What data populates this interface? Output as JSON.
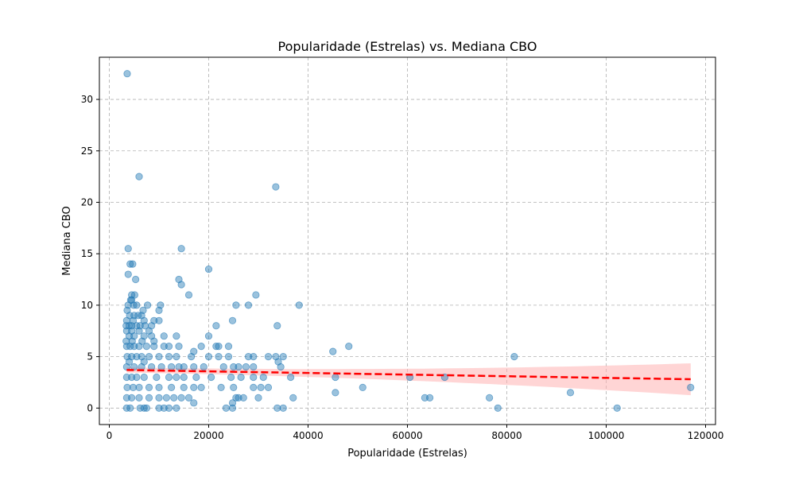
{
  "chart_data": {
    "type": "scatter",
    "title": "Popularidade (Estrelas) vs. Mediana CBO",
    "xlabel": "Popularidade (Estrelas)",
    "ylabel": "Mediana CBO",
    "xlim": [
      -2000,
      122000
    ],
    "ylim": [
      -1.6,
      34.1
    ],
    "xticks": [
      0,
      20000,
      40000,
      60000,
      80000,
      100000,
      120000
    ],
    "yticks": [
      0,
      5,
      10,
      15,
      20,
      25,
      30
    ],
    "grid": true,
    "colors": {
      "points": "#1f77b4",
      "regression_line": "#ff0000",
      "confidence_band": "#ffb3b3"
    },
    "regression": {
      "x": [
        3500,
        117000
      ],
      "y": [
        3.7,
        2.8
      ],
      "band_half_width": [
        0.25,
        1.55
      ]
    },
    "points": [
      [
        3600,
        32.5
      ],
      [
        6000,
        22.5
      ],
      [
        33500,
        21.5
      ],
      [
        3800,
        15.5
      ],
      [
        14500,
        15.5
      ],
      [
        4200,
        14
      ],
      [
        4700,
        14
      ],
      [
        3800,
        13
      ],
      [
        20000,
        13.5
      ],
      [
        5300,
        12.5
      ],
      [
        14000,
        12.5
      ],
      [
        14500,
        12
      ],
      [
        16000,
        11
      ],
      [
        4500,
        11
      ],
      [
        5100,
        11
      ],
      [
        29500,
        11
      ],
      [
        4500,
        10.5
      ],
      [
        4300,
        10.5
      ],
      [
        3800,
        10
      ],
      [
        4900,
        10
      ],
      [
        5500,
        10
      ],
      [
        7700,
        10
      ],
      [
        10300,
        10
      ],
      [
        25500,
        10
      ],
      [
        28000,
        10
      ],
      [
        38200,
        10
      ],
      [
        3600,
        9.5
      ],
      [
        6800,
        9.5
      ],
      [
        10000,
        9.5
      ],
      [
        4100,
        9
      ],
      [
        5000,
        9
      ],
      [
        5800,
        9
      ],
      [
        6500,
        9
      ],
      [
        3500,
        8.5
      ],
      [
        4800,
        8.5
      ],
      [
        7000,
        8.5
      ],
      [
        9000,
        8.5
      ],
      [
        10000,
        8.5
      ],
      [
        24800,
        8.5
      ],
      [
        3400,
        8
      ],
      [
        4000,
        8
      ],
      [
        4500,
        8
      ],
      [
        5500,
        8
      ],
      [
        6200,
        8
      ],
      [
        7200,
        8
      ],
      [
        8500,
        8
      ],
      [
        21500,
        8
      ],
      [
        33800,
        8
      ],
      [
        3500,
        7.5
      ],
      [
        4500,
        7.5
      ],
      [
        6000,
        7.5
      ],
      [
        8000,
        7.5
      ],
      [
        4000,
        7
      ],
      [
        5000,
        7
      ],
      [
        7000,
        7
      ],
      [
        8500,
        7
      ],
      [
        11000,
        7
      ],
      [
        13500,
        7
      ],
      [
        20000,
        7
      ],
      [
        3400,
        6.5
      ],
      [
        4600,
        6.5
      ],
      [
        6600,
        6.5
      ],
      [
        9000,
        6.5
      ],
      [
        3500,
        6
      ],
      [
        4200,
        6
      ],
      [
        5000,
        6
      ],
      [
        6000,
        6
      ],
      [
        7500,
        6
      ],
      [
        9000,
        6
      ],
      [
        11000,
        6
      ],
      [
        12000,
        6
      ],
      [
        14000,
        6
      ],
      [
        18500,
        6
      ],
      [
        21500,
        6
      ],
      [
        22000,
        6
      ],
      [
        24000,
        6
      ],
      [
        48200,
        6
      ],
      [
        17000,
        5.5
      ],
      [
        45000,
        5.5
      ],
      [
        3600,
        5
      ],
      [
        4500,
        5
      ],
      [
        5500,
        5
      ],
      [
        6500,
        5
      ],
      [
        8000,
        5
      ],
      [
        10000,
        5
      ],
      [
        12000,
        5
      ],
      [
        13500,
        5
      ],
      [
        16500,
        5
      ],
      [
        20000,
        5
      ],
      [
        22000,
        5
      ],
      [
        24000,
        5
      ],
      [
        28000,
        5
      ],
      [
        29000,
        5
      ],
      [
        32000,
        5
      ],
      [
        33500,
        5
      ],
      [
        35000,
        5
      ],
      [
        81500,
        5
      ],
      [
        34000,
        4.5
      ],
      [
        4000,
        4.5
      ],
      [
        7000,
        4.5
      ],
      [
        3500,
        4
      ],
      [
        5000,
        4
      ],
      [
        6500,
        4
      ],
      [
        8500,
        4
      ],
      [
        10500,
        4
      ],
      [
        12500,
        4
      ],
      [
        14000,
        4
      ],
      [
        15000,
        4
      ],
      [
        17000,
        4
      ],
      [
        19000,
        4
      ],
      [
        23000,
        4
      ],
      [
        25000,
        4
      ],
      [
        26000,
        4
      ],
      [
        27500,
        4
      ],
      [
        29000,
        4
      ],
      [
        34500,
        4
      ],
      [
        3500,
        3
      ],
      [
        4500,
        3
      ],
      [
        5500,
        3
      ],
      [
        7000,
        3
      ],
      [
        9500,
        3
      ],
      [
        12000,
        3
      ],
      [
        13500,
        3
      ],
      [
        15000,
        3
      ],
      [
        17500,
        3
      ],
      [
        20500,
        3
      ],
      [
        24500,
        3
      ],
      [
        26500,
        3
      ],
      [
        29000,
        3
      ],
      [
        31000,
        3
      ],
      [
        36500,
        3
      ],
      [
        45500,
        3
      ],
      [
        60500,
        3
      ],
      [
        67500,
        3
      ],
      [
        3600,
        2
      ],
      [
        4800,
        2
      ],
      [
        6000,
        2
      ],
      [
        8000,
        2
      ],
      [
        10000,
        2
      ],
      [
        12500,
        2
      ],
      [
        15000,
        2
      ],
      [
        17000,
        2
      ],
      [
        18500,
        2
      ],
      [
        22500,
        2
      ],
      [
        25000,
        2
      ],
      [
        29000,
        2
      ],
      [
        30500,
        2
      ],
      [
        32000,
        2
      ],
      [
        51000,
        2
      ],
      [
        117000,
        2
      ],
      [
        45500,
        1.5
      ],
      [
        92800,
        1.5
      ],
      [
        3500,
        1
      ],
      [
        4500,
        1
      ],
      [
        6000,
        1
      ],
      [
        8000,
        1
      ],
      [
        10000,
        1
      ],
      [
        11500,
        1
      ],
      [
        13000,
        1
      ],
      [
        14500,
        1
      ],
      [
        16000,
        1
      ],
      [
        25500,
        1
      ],
      [
        26000,
        1
      ],
      [
        27000,
        1
      ],
      [
        30000,
        1
      ],
      [
        37000,
        1
      ],
      [
        63500,
        1
      ],
      [
        64500,
        1
      ],
      [
        76500,
        1
      ],
      [
        17000,
        0.5
      ],
      [
        24800,
        0.5
      ],
      [
        3500,
        0
      ],
      [
        4200,
        0
      ],
      [
        6200,
        0
      ],
      [
        7000,
        0
      ],
      [
        7500,
        0
      ],
      [
        10000,
        0
      ],
      [
        11000,
        0
      ],
      [
        12000,
        0
      ],
      [
        13500,
        0
      ],
      [
        23500,
        0
      ],
      [
        24800,
        0
      ],
      [
        33800,
        0
      ],
      [
        35000,
        0
      ],
      [
        78200,
        0
      ],
      [
        102200,
        0
      ]
    ]
  }
}
